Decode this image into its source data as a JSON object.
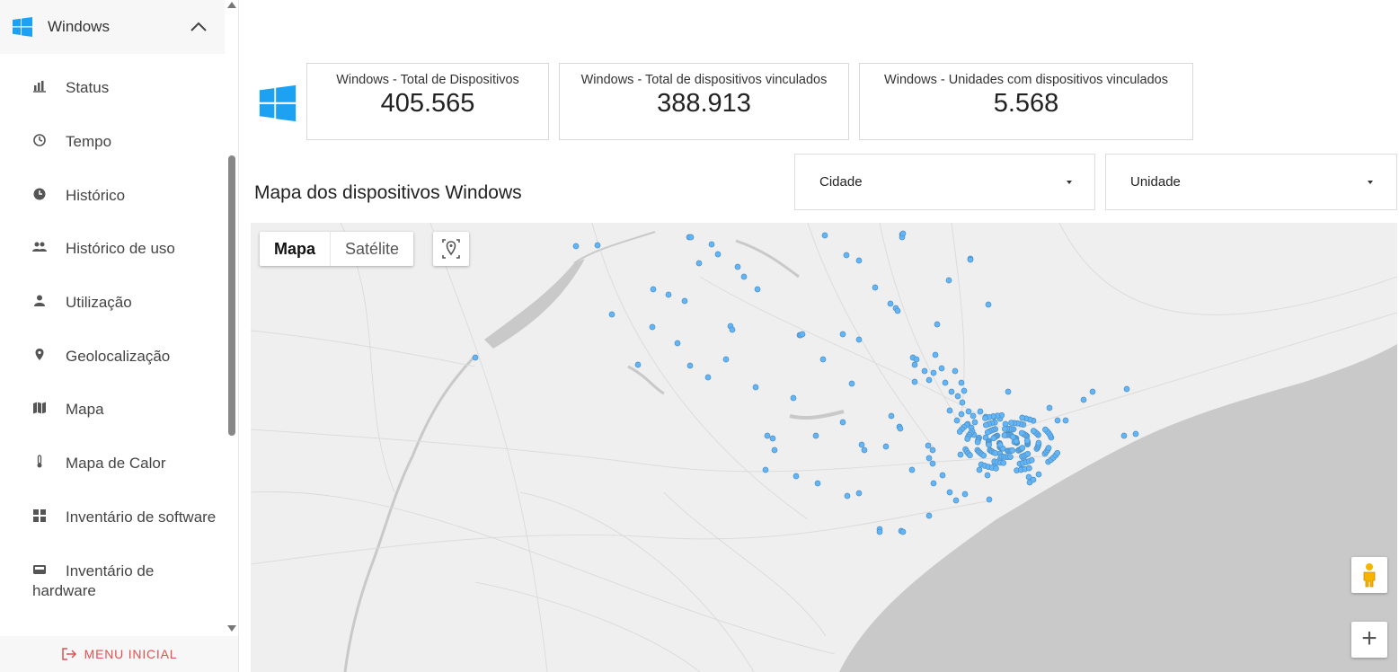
{
  "sidebar": {
    "title": "Windows",
    "items": [
      {
        "label": "Status",
        "icon": "bar-chart-icon"
      },
      {
        "label": "Tempo",
        "icon": "timer-icon"
      },
      {
        "label": "Histórico",
        "icon": "clock-icon"
      },
      {
        "label": "Histórico de uso",
        "icon": "people-icon"
      },
      {
        "label": "Utilização",
        "icon": "person-icon"
      },
      {
        "label": "Geolocalização",
        "icon": "location-pin-icon"
      },
      {
        "label": "Mapa",
        "icon": "map-icon"
      },
      {
        "label": "Mapa de Calor",
        "icon": "thermometer-icon"
      },
      {
        "label": "Inventário de software",
        "icon": "grid-icon"
      },
      {
        "label": "Inventário de hardware",
        "icon": "hardware-icon"
      }
    ],
    "footer_label": "MENU INICIAL"
  },
  "cards": [
    {
      "title": "Windows - Total de Dispositivos",
      "value": "405.565"
    },
    {
      "title": "Windows - Total de dispositivos vinculados",
      "value": "388.913"
    },
    {
      "title": "Windows - Unidades com dispositivos vinculados",
      "value": "5.568"
    }
  ],
  "map_section": {
    "title": "Mapa dos dispositivos Windows",
    "filters": {
      "city": "Cidade",
      "unit": "Unidade"
    },
    "map_type": {
      "map": "Mapa",
      "satellite": "Satélite"
    }
  },
  "colors": {
    "accent": "#1da1f2",
    "marker": "#64b5f6",
    "footer": "#e05050",
    "water": "#c9c9c9",
    "land": "#efefef"
  }
}
